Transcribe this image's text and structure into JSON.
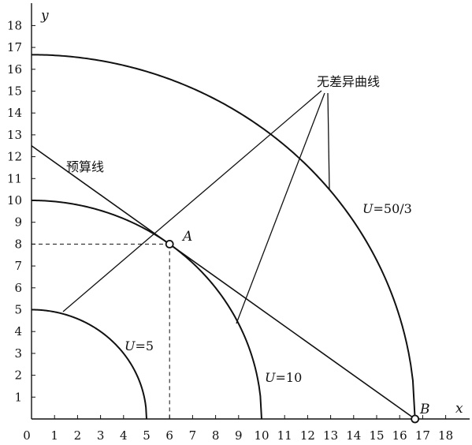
{
  "chart_data": {
    "type": "line",
    "xlabel": "x",
    "ylabel": "y",
    "xlim": [
      0,
      18
    ],
    "ylim": [
      0,
      18
    ],
    "x_ticks": [
      "0",
      "1",
      "2",
      "3",
      "4",
      "5",
      "6",
      "7",
      "8",
      "9",
      "10",
      "11",
      "12",
      "13",
      "14",
      "15",
      "16",
      "17",
      "18"
    ],
    "y_ticks": [
      "1",
      "2",
      "3",
      "4",
      "5",
      "6",
      "7",
      "8",
      "9",
      "10",
      "11",
      "12",
      "13",
      "14",
      "15",
      "16",
      "17",
      "18"
    ],
    "indifference_curves": [
      {
        "label_prefix": "U",
        "label_value": "=5",
        "utility": 5,
        "x_end": 5
      },
      {
        "label_prefix": "U",
        "label_value": "=10",
        "utility": 10,
        "x_end": 10
      },
      {
        "label_prefix": "U",
        "label_value": "=50/3",
        "utility": 16.6667,
        "x_end": 16.6667
      }
    ],
    "budget_line": {
      "label": "预算线",
      "x_intercept": 16.6667,
      "y_intercept": 12.5
    },
    "points": [
      {
        "name": "A",
        "x": 6,
        "y": 8
      },
      {
        "name": "B",
        "x": 16.6667,
        "y": 0
      }
    ],
    "annotation": {
      "text": "无差异曲线",
      "points_to_utilities": [
        5,
        10,
        16.6667
      ]
    },
    "grid": false
  }
}
